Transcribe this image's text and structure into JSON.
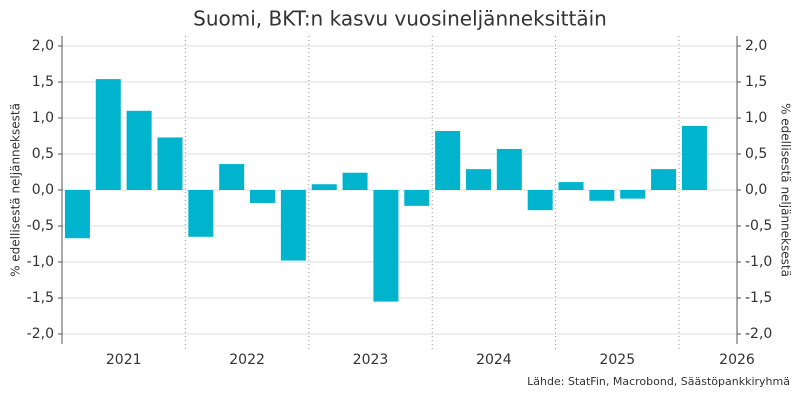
{
  "chart_data": {
    "type": "bar",
    "title": "Suomi, BKT:n kasvu vuosineljänneksittäin",
    "y_label": "% edellisestä neljänneksestä",
    "y2_label": "% edellisestä neljänneksestä",
    "source": "Lähde: StatFin, Macrobond, Säästöpankkiryhmä",
    "year_labels": [
      "2021",
      "2022",
      "2023",
      "2024",
      "2025",
      "2026"
    ],
    "categories": [
      null,
      null,
      null,
      null,
      null,
      null,
      null,
      null,
      null,
      null,
      null,
      null,
      null,
      null,
      null,
      null,
      null,
      null,
      null,
      null,
      null
    ],
    "values": [
      -0.67,
      1.54,
      1.1,
      0.73,
      -0.65,
      0.36,
      -0.18,
      -0.98,
      0.08,
      0.24,
      -1.55,
      -0.22,
      0.82,
      0.29,
      0.57,
      -0.28,
      0.11,
      -0.15,
      -0.12,
      0.29,
      0.89
    ],
    "color": "#00b4ce",
    "ylim": [
      -2,
      2
    ],
    "yticks": [
      {
        "value": 2,
        "label": "2,0"
      },
      {
        "value": 1.5,
        "label": "1,5"
      },
      {
        "value": 1,
        "label": "1,0"
      },
      {
        "value": 0.5,
        "label": "0,5"
      },
      {
        "value": 0,
        "label": "0,0"
      },
      {
        "value": -0.5,
        "label": "-0,5"
      },
      {
        "value": -1,
        "label": "-1,0"
      },
      {
        "value": -1.5,
        "label": "-1,5"
      },
      {
        "value": -2,
        "label": "-2,0"
      }
    ],
    "y2lim": [
      -2,
      2
    ],
    "y2ticks": [
      {
        "value": 2,
        "label": "2,0"
      },
      {
        "value": 1.5,
        "label": "1,5"
      },
      {
        "value": 1,
        "label": "1,0"
      },
      {
        "value": 0.5,
        "label": "0,5"
      },
      {
        "value": 0,
        "label": "0,0"
      },
      {
        "value": -0.5,
        "label": "-0,5"
      },
      {
        "value": -1,
        "label": "-1,0"
      },
      {
        "value": -1.5,
        "label": "-1,5"
      },
      {
        "value": -2,
        "label": "-2,0"
      }
    ],
    "grid": true
  }
}
